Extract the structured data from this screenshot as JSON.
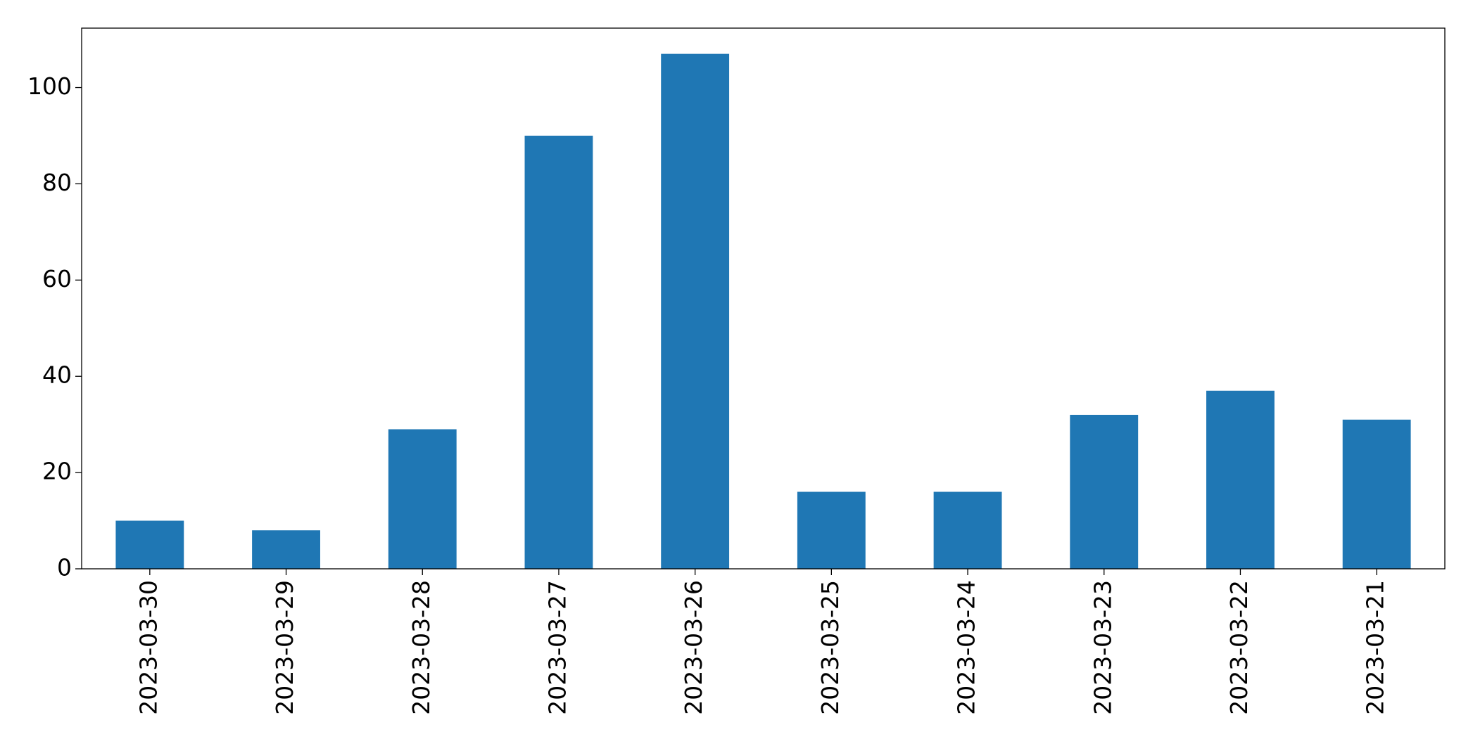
{
  "chart_data": {
    "type": "bar",
    "categories": [
      "2023-03-30",
      "2023-03-29",
      "2023-03-28",
      "2023-03-27",
      "2023-03-26",
      "2023-03-25",
      "2023-03-24",
      "2023-03-23",
      "2023-03-22",
      "2023-03-21"
    ],
    "values": [
      10,
      8,
      29,
      90,
      107,
      16,
      16,
      32,
      37,
      31
    ],
    "color": "#1f77b4",
    "ylim": [
      0,
      112.35
    ],
    "yticks": [
      0,
      20,
      40,
      60,
      80,
      100
    ],
    "grid": false
  }
}
